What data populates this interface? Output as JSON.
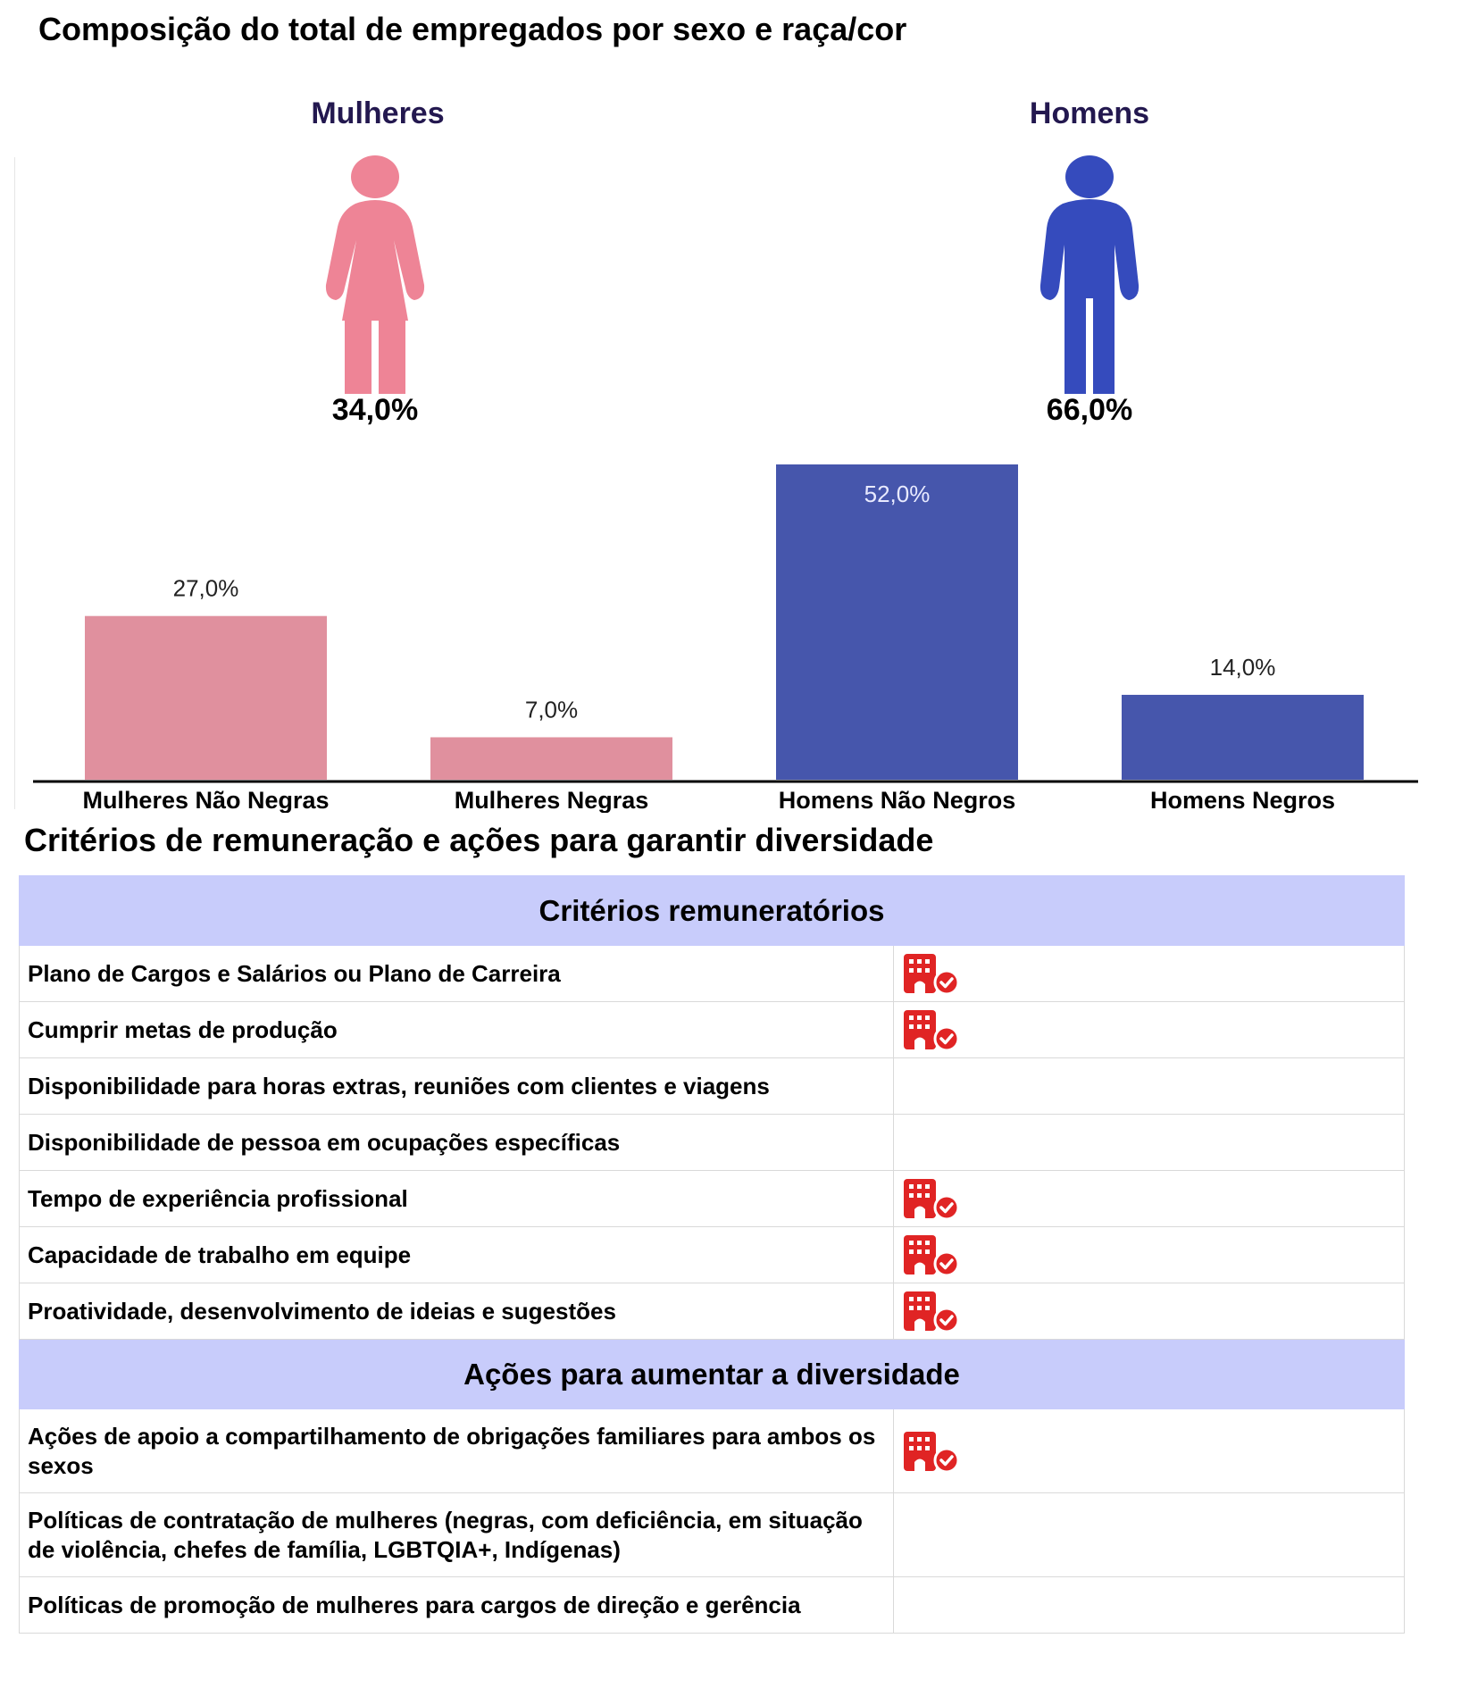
{
  "title": "Composição do total de empregados por sexo e raça/cor",
  "gender": {
    "women": {
      "label": "Mulheres",
      "percent": "34,0%",
      "color": "#ee8496"
    },
    "men": {
      "label": "Homens",
      "percent": "66,0%",
      "color": "#354bbd"
    }
  },
  "chart_data": {
    "type": "bar",
    "title": "",
    "xlabel": "",
    "ylabel": "",
    "categories": [
      "Mulheres Não Negras",
      "Mulheres Negras",
      "Homens Não Negros",
      "Homens Negros"
    ],
    "values": [
      27.0,
      7.0,
      52.0,
      14.0
    ],
    "labels": [
      "27,0%",
      "7,0%",
      "52,0%",
      "14,0%"
    ],
    "colors": [
      "#e0909e",
      "#e0909e",
      "#4656ac",
      "#4656ac"
    ],
    "ylim": [
      0,
      52
    ],
    "grid": false
  },
  "section_title": "Critérios de remuneração e ações para garantir diversidade",
  "table": {
    "groups": [
      {
        "header": "Critérios remuneratórios",
        "rows": [
          {
            "label": "Plano de Cargos e Salários ou Plano de Carreira",
            "check": true
          },
          {
            "label": "Cumprir metas de produção",
            "check": true
          },
          {
            "label": "Disponibilidade para horas extras, reuniões com clientes e viagens",
            "check": false
          },
          {
            "label": "Disponibilidade de pessoa em ocupações específicas",
            "check": false
          },
          {
            "label": "Tempo de experiência profissional",
            "check": true
          },
          {
            "label": "Capacidade de trabalho em equipe",
            "check": true
          },
          {
            "label": "Proatividade, desenvolvimento de ideias e sugestões",
            "check": true
          }
        ]
      },
      {
        "header": "Ações para aumentar a diversidade",
        "rows": [
          {
            "label": "Ações de apoio a compartilhamento de obrigações familiares para ambos os sexos",
            "check": true,
            "tall": true
          },
          {
            "label": "Políticas de contratação de mulheres (negras, com deficiência, em situação de violência, chefes de família, LGBTQIA+, Indígenas)",
            "check": false,
            "tall": true
          },
          {
            "label": "Políticas de promoção de mulheres para cargos de direção e gerência",
            "check": false
          }
        ]
      }
    ],
    "icon": "building-check-icon",
    "icon_color": "#e02424"
  }
}
